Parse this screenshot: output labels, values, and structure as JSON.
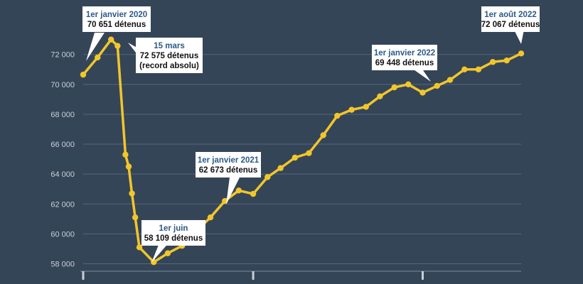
{
  "chart_data": {
    "type": "line",
    "title": "",
    "xlabel": "",
    "ylabel": "",
    "ylim": [
      57500,
      74600
    ],
    "y_ticks": [
      58000,
      60000,
      62000,
      64000,
      66000,
      68000,
      70000,
      72000
    ],
    "y_tick_labels": [
      "58 000",
      "60 000",
      "62 000",
      "64 000",
      "66 000",
      "68 000",
      "70 000",
      "72 000"
    ],
    "grid": true,
    "line_color": "#f2c62a",
    "background_color": "#354558",
    "x_year_markers": [
      "2020-01-01",
      "2021-01-01",
      "2022-01-01"
    ],
    "series": [
      {
        "points": [
          {
            "date": "2020-01-01",
            "value": 70651
          },
          {
            "date": "2020-02-01",
            "value": 71800
          },
          {
            "date": "2020-03-01",
            "value": 73000
          },
          {
            "date": "2020-03-15",
            "value": 72575
          },
          {
            "date": "2020-04-01",
            "value": 65300
          },
          {
            "date": "2020-04-08",
            "value": 64500
          },
          {
            "date": "2020-04-15",
            "value": 62700
          },
          {
            "date": "2020-04-22",
            "value": 61100
          },
          {
            "date": "2020-05-01",
            "value": 59100
          },
          {
            "date": "2020-06-01",
            "value": 58109
          },
          {
            "date": "2020-07-01",
            "value": 58700
          },
          {
            "date": "2020-08-01",
            "value": 59200
          },
          {
            "date": "2020-09-01",
            "value": 60200
          },
          {
            "date": "2020-10-01",
            "value": 61100
          },
          {
            "date": "2020-11-01",
            "value": 62200
          },
          {
            "date": "2020-12-01",
            "value": 62900
          },
          {
            "date": "2021-01-01",
            "value": 62673
          },
          {
            "date": "2021-02-01",
            "value": 63800
          },
          {
            "date": "2021-03-01",
            "value": 64400
          },
          {
            "date": "2021-04-01",
            "value": 65100
          },
          {
            "date": "2021-05-01",
            "value": 65400
          },
          {
            "date": "2021-06-01",
            "value": 66600
          },
          {
            "date": "2021-07-01",
            "value": 67900
          },
          {
            "date": "2021-08-01",
            "value": 68300
          },
          {
            "date": "2021-09-01",
            "value": 68500
          },
          {
            "date": "2021-10-01",
            "value": 69200
          },
          {
            "date": "2021-11-01",
            "value": 69800
          },
          {
            "date": "2021-12-01",
            "value": 70000
          },
          {
            "date": "2022-01-01",
            "value": 69448
          },
          {
            "date": "2022-02-01",
            "value": 69900
          },
          {
            "date": "2022-03-01",
            "value": 70300
          },
          {
            "date": "2022-04-01",
            "value": 71000
          },
          {
            "date": "2022-05-01",
            "value": 71000
          },
          {
            "date": "2022-06-01",
            "value": 71500
          },
          {
            "date": "2022-07-01",
            "value": 71600
          },
          {
            "date": "2022-08-01",
            "value": 72067
          }
        ]
      }
    ],
    "annotations": [
      {
        "date": "2020-01-01",
        "value": 70651,
        "title": "1er janvier 2020",
        "lines": [
          "70 651 détenus"
        ]
      },
      {
        "date": "2020-03-15",
        "value": 72575,
        "title": "15 mars",
        "lines": [
          "72 575 détenus",
          "(record absolu)"
        ]
      },
      {
        "date": "2020-06-01",
        "value": 58109,
        "title": "1er juin",
        "lines": [
          "58 109 détenus"
        ]
      },
      {
        "date": "2021-01-01",
        "value": 62673,
        "title": "1er janvier 2021",
        "lines": [
          "62 673 détenus"
        ]
      },
      {
        "date": "2022-01-01",
        "value": 69448,
        "title": "1er janvier 2022",
        "lines": [
          "69 448 détenus"
        ]
      },
      {
        "date": "2022-08-01",
        "value": 72067,
        "title": "1er août 2022",
        "lines": [
          "72 067 détenus"
        ]
      }
    ]
  }
}
